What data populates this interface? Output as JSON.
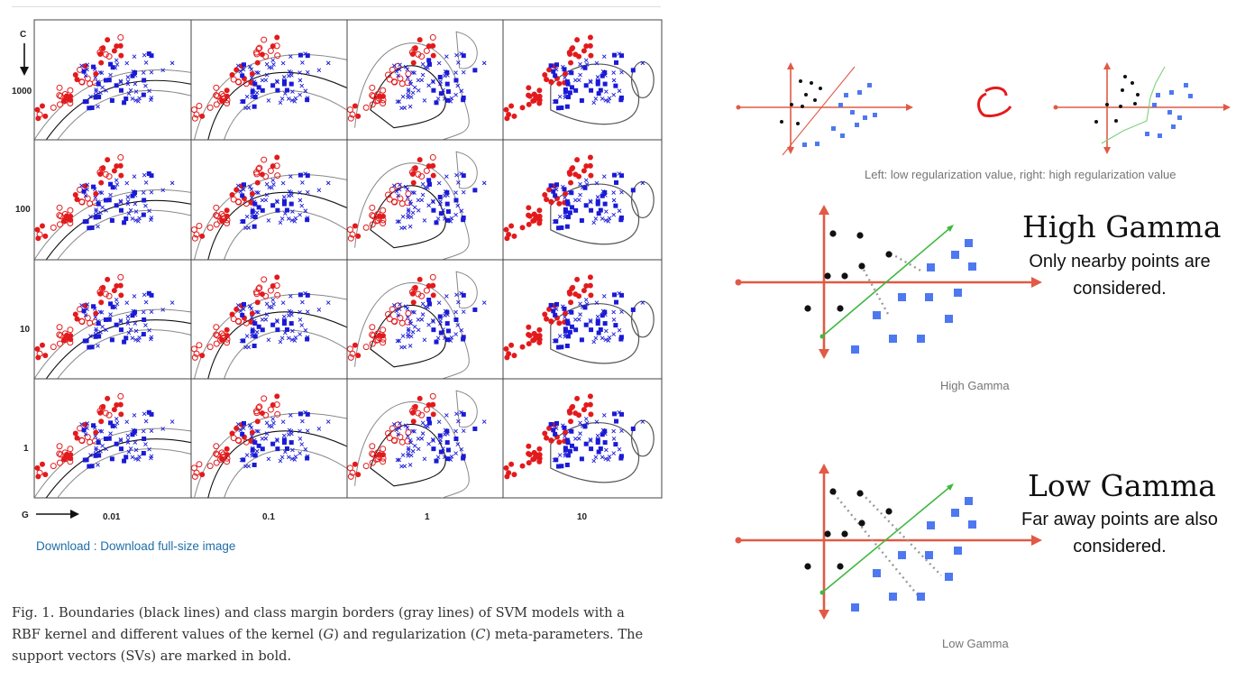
{
  "figure": {
    "c_axis_label": "C",
    "g_axis_label": "G",
    "row_labels": [
      "1000",
      "100",
      "10",
      "1"
    ],
    "col_labels": [
      "0.01",
      "0.1",
      "1",
      "10"
    ]
  },
  "download_link": "Download : Download full-size image",
  "caption": {
    "part1": "Fig. 1. Boundaries (black lines) and class margin borders (gray lines) of SVM models with a RBF kernel and different values of the kernel (",
    "g": "G",
    "part2": ") and regularization (",
    "c": "C",
    "part3": ") meta-parameters. The support vectors (SVs) are marked in bold."
  },
  "regularization": {
    "caption": "Left: low regularization value, right: high regularization value"
  },
  "high_gamma": {
    "title": "High Gamma",
    "subtitle": "Only nearby points are considered.",
    "caption": "High Gamma"
  },
  "low_gamma": {
    "title": "Low Gamma",
    "subtitle": "Far away points are also considered.",
    "caption": "Low Gamma"
  },
  "colors": {
    "red_class": "#e31a1c",
    "blue_class": "#1a1ad6",
    "axis_red": "#e05a45",
    "square_blue": "#4d78f0",
    "hyperplane_green": "#3fb83f"
  }
}
